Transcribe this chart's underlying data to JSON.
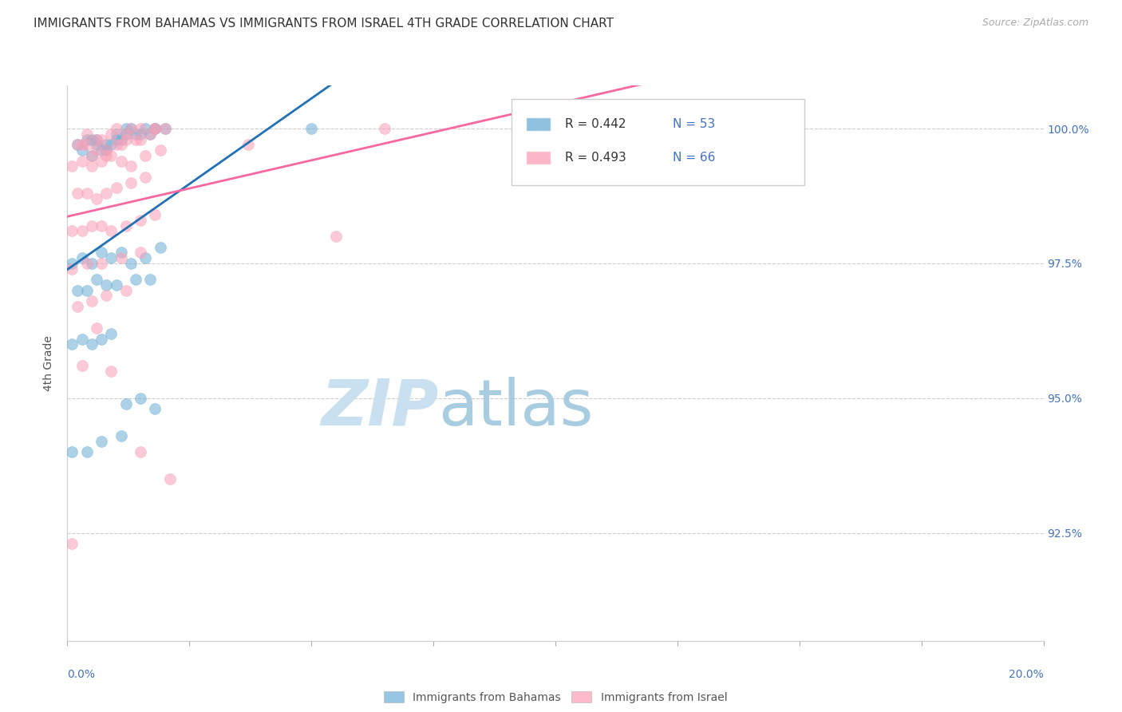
{
  "title": "IMMIGRANTS FROM BAHAMAS VS IMMIGRANTS FROM ISRAEL 4TH GRADE CORRELATION CHART",
  "source": "Source: ZipAtlas.com",
  "ylabel": "4th Grade",
  "ytick_labels": [
    "100.0%",
    "97.5%",
    "95.0%",
    "92.5%"
  ],
  "ytick_values": [
    1.0,
    0.975,
    0.95,
    0.925
  ],
  "xlim": [
    0.0,
    0.2
  ],
  "ylim": [
    0.905,
    1.008
  ],
  "legend_blue_r": "R = 0.442",
  "legend_blue_n": "N = 53",
  "legend_pink_r": "R = 0.493",
  "legend_pink_n": "N = 66",
  "legend_label_blue": "Immigrants from Bahamas",
  "legend_label_pink": "Immigrants from Israel",
  "blue_color": "#6baed6",
  "pink_color": "#fa9fb5",
  "blue_line_color": "#2171b5",
  "pink_line_color": "#f768a1",
  "blue_scatter_x": [
    0.005,
    0.008,
    0.01,
    0.012,
    0.003,
    0.006,
    0.009,
    0.013,
    0.016,
    0.018,
    0.005,
    0.007,
    0.011,
    0.014,
    0.017,
    0.002,
    0.004,
    0.006,
    0.008,
    0.01,
    0.012,
    0.015,
    0.018,
    0.02,
    0.001,
    0.003,
    0.005,
    0.007,
    0.009,
    0.011,
    0.013,
    0.016,
    0.019,
    0.002,
    0.004,
    0.006,
    0.008,
    0.01,
    0.014,
    0.017,
    0.001,
    0.003,
    0.005,
    0.007,
    0.009,
    0.012,
    0.015,
    0.018,
    0.001,
    0.004,
    0.007,
    0.011,
    0.05
  ],
  "blue_scatter_y": [
    0.998,
    0.997,
    0.999,
    1.0,
    0.996,
    0.998,
    0.997,
    1.0,
    1.0,
    1.0,
    0.995,
    0.996,
    0.998,
    0.999,
    0.999,
    0.997,
    0.998,
    0.997,
    0.996,
    0.998,
    0.999,
    0.999,
    1.0,
    1.0,
    0.975,
    0.976,
    0.975,
    0.977,
    0.976,
    0.977,
    0.975,
    0.976,
    0.978,
    0.97,
    0.97,
    0.972,
    0.971,
    0.971,
    0.972,
    0.972,
    0.96,
    0.961,
    0.96,
    0.961,
    0.962,
    0.949,
    0.95,
    0.948,
    0.94,
    0.94,
    0.942,
    0.943,
    1.0
  ],
  "pink_scatter_x": [
    0.004,
    0.007,
    0.01,
    0.013,
    0.003,
    0.006,
    0.009,
    0.012,
    0.015,
    0.018,
    0.005,
    0.008,
    0.011,
    0.014,
    0.017,
    0.002,
    0.004,
    0.006,
    0.008,
    0.01,
    0.012,
    0.015,
    0.018,
    0.001,
    0.003,
    0.005,
    0.007,
    0.009,
    0.011,
    0.013,
    0.016,
    0.019,
    0.002,
    0.004,
    0.006,
    0.008,
    0.01,
    0.013,
    0.016,
    0.001,
    0.003,
    0.005,
    0.007,
    0.009,
    0.012,
    0.015,
    0.018,
    0.001,
    0.004,
    0.007,
    0.011,
    0.015,
    0.002,
    0.005,
    0.008,
    0.012,
    0.006,
    0.02,
    0.037,
    0.055,
    0.003,
    0.009,
    0.015,
    0.021,
    0.001,
    0.065
  ],
  "pink_scatter_y": [
    0.999,
    0.998,
    1.0,
    1.0,
    0.997,
    0.998,
    0.999,
    0.999,
    1.0,
    1.0,
    0.995,
    0.996,
    0.997,
    0.998,
    0.999,
    0.997,
    0.997,
    0.996,
    0.995,
    0.997,
    0.998,
    0.998,
    1.0,
    0.993,
    0.994,
    0.993,
    0.994,
    0.995,
    0.994,
    0.993,
    0.995,
    0.996,
    0.988,
    0.988,
    0.987,
    0.988,
    0.989,
    0.99,
    0.991,
    0.981,
    0.981,
    0.982,
    0.982,
    0.981,
    0.982,
    0.983,
    0.984,
    0.974,
    0.975,
    0.975,
    0.976,
    0.977,
    0.967,
    0.968,
    0.969,
    0.97,
    0.963,
    1.0,
    0.997,
    0.98,
    0.956,
    0.955,
    0.94,
    0.935,
    0.923,
    1.0
  ]
}
